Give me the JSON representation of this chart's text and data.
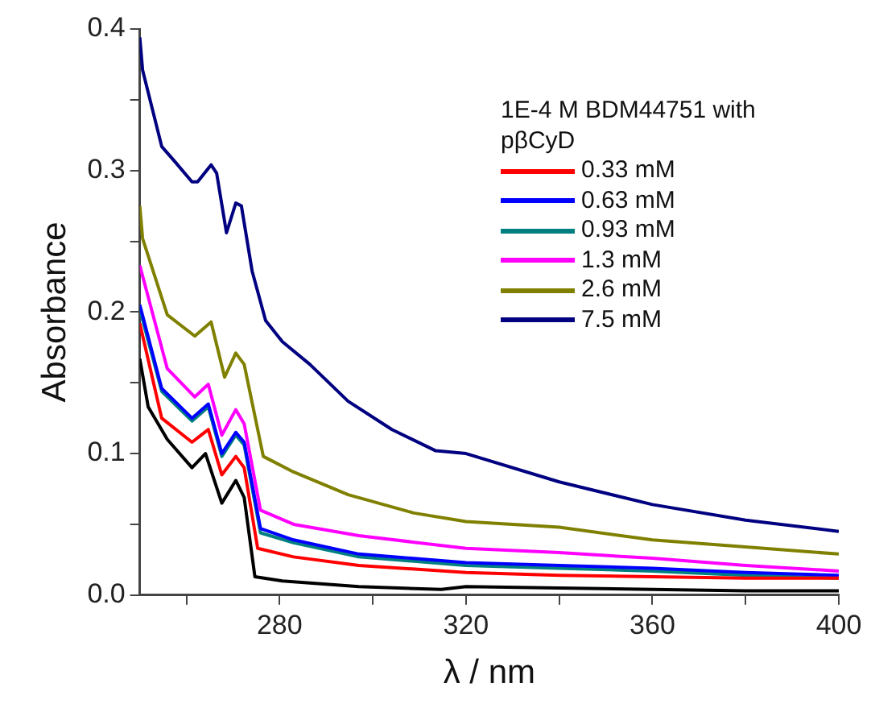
{
  "chart_data": {
    "type": "line",
    "xlabel": "λ / nm",
    "ylabel": "Absorbance",
    "legend_title": "1E-4 M BDM44751 with pβCyD",
    "xlim": [
      250,
      400
    ],
    "xticks": [
      {
        "value": 260,
        "label": null
      },
      280,
      {
        "value": 300,
        "label": null
      },
      320,
      {
        "value": 340,
        "label": null
      },
      360,
      {
        "value": 380,
        "label": null
      },
      400
    ],
    "ylim": [
      0,
      0.4
    ],
    "yticks": [
      {
        "value": 0,
        "label": "0.0"
      },
      {
        "value": 0.05,
        "label": null
      },
      0.1,
      {
        "value": 0.15,
        "label": null
      },
      0.2,
      {
        "value": 0.25,
        "label": null
      },
      0.3,
      {
        "value": 0.35,
        "label": null
      },
      0.4
    ],
    "grid": false,
    "legend": "top right",
    "marker": "none",
    "line_style": "solid",
    "series": [
      {
        "color": "#000000",
        "x": [
          250,
          251.8,
          255.9,
          261.2,
          264.1,
          267.6,
          270.6,
          272.4,
          274.7,
          280.6,
          297,
          314.7,
          320,
          340,
          360,
          380,
          400
        ],
        "values": [
          0.167,
          0.133,
          0.11,
          0.09,
          0.1,
          0.065,
          0.081,
          0.069,
          0.013,
          0.01,
          0.006,
          0.004,
          0.006,
          0.005,
          0.004,
          0.003,
          0.003
        ]
      },
      {
        "name": "0.33 mM",
        "color": "#ff0000",
        "x": [
          250,
          254.7,
          261.2,
          264.7,
          267.6,
          270.6,
          272.4,
          275.3,
          283,
          297,
          320,
          340,
          360,
          380,
          400
        ],
        "values": [
          0.192,
          0.125,
          0.108,
          0.117,
          0.085,
          0.098,
          0.09,
          0.033,
          0.027,
          0.021,
          0.016,
          0.014,
          0.013,
          0.012,
          0.012
        ]
      },
      {
        "name": "0.63 mM",
        "color": "#0000ff",
        "x": [
          250,
          254.7,
          261.2,
          264.7,
          267.6,
          270.6,
          272.4,
          275.9,
          283,
          297,
          320,
          340,
          360,
          380,
          400
        ],
        "values": [
          0.205,
          0.146,
          0.125,
          0.135,
          0.1,
          0.115,
          0.108,
          0.047,
          0.039,
          0.029,
          0.023,
          0.021,
          0.019,
          0.016,
          0.014
        ]
      },
      {
        "name": "0.93 mM",
        "color": "#008080",
        "x": [
          250,
          254.7,
          261.2,
          264.7,
          267.6,
          270.6,
          272.4,
          275.9,
          283,
          297,
          320,
          340,
          360,
          380,
          400
        ],
        "values": [
          0.202,
          0.144,
          0.123,
          0.133,
          0.098,
          0.113,
          0.106,
          0.044,
          0.037,
          0.027,
          0.021,
          0.019,
          0.017,
          0.014,
          0.012
        ]
      },
      {
        "name": "1.3 mM",
        "color": "#ff00ff",
        "x": [
          250,
          255.9,
          261.8,
          264.7,
          267.6,
          270.6,
          272.4,
          275.9,
          283,
          297,
          320,
          340,
          360,
          380,
          400
        ],
        "values": [
          0.233,
          0.16,
          0.14,
          0.149,
          0.113,
          0.131,
          0.121,
          0.06,
          0.05,
          0.042,
          0.033,
          0.03,
          0.026,
          0.021,
          0.017
        ]
      },
      {
        "name": "2.6 mM",
        "color": "#808000",
        "x": [
          250,
          250.6,
          255.9,
          261.8,
          265.3,
          268.2,
          270.6,
          272.4,
          276.5,
          283,
          294.7,
          308.8,
          320,
          340,
          360,
          380,
          400
        ],
        "values": [
          0.275,
          0.252,
          0.198,
          0.183,
          0.193,
          0.154,
          0.171,
          0.163,
          0.098,
          0.087,
          0.071,
          0.058,
          0.052,
          0.048,
          0.039,
          0.034,
          0.029
        ]
      },
      {
        "name": "7.5 mM",
        "color": "#000080",
        "x": [
          250,
          250.6,
          254.7,
          257.6,
          261.2,
          262.4,
          265.3,
          266.5,
          268.6,
          270.6,
          271.8,
          274.1,
          277,
          280.6,
          286.5,
          294.7,
          304.1,
          313.5,
          320,
          340,
          360,
          380,
          400
        ],
        "values": [
          0.394,
          0.371,
          0.317,
          0.306,
          0.292,
          0.292,
          0.304,
          0.298,
          0.256,
          0.277,
          0.275,
          0.229,
          0.194,
          0.179,
          0.163,
          0.137,
          0.117,
          0.102,
          0.1,
          0.08,
          0.064,
          0.053,
          0.045
        ]
      }
    ]
  }
}
